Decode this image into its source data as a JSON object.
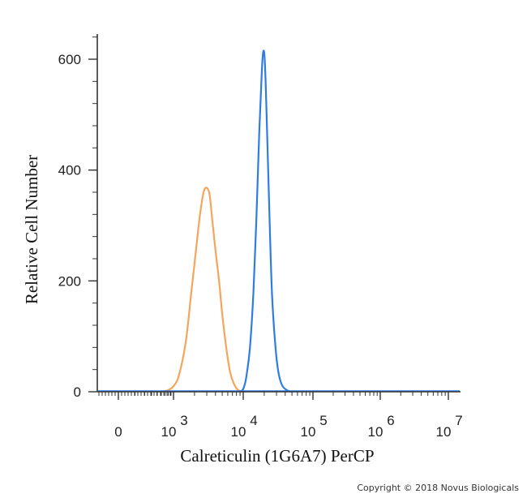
{
  "chart_data": {
    "type": "line",
    "title": "",
    "xlabel": "Calreticulin (1G6A7) PerCP",
    "ylabel": "Relative Cell Number",
    "x_scale": "biexponential",
    "x_ticks": [
      {
        "value": 0,
        "base": "0",
        "exp": ""
      },
      {
        "value": 1000,
        "base": "10",
        "exp": "3"
      },
      {
        "value": 10000,
        "base": "10",
        "exp": "4"
      },
      {
        "value": 100000,
        "base": "10",
        "exp": "5"
      },
      {
        "value": 1000000,
        "base": "10",
        "exp": "6"
      },
      {
        "value": 10000000,
        "base": "10",
        "exp": "7"
      }
    ],
    "y_ticks": [
      0,
      200,
      400,
      600
    ],
    "ylim": [
      0,
      640
    ],
    "grid": false,
    "series": [
      {
        "color": "#f5a55a",
        "x": [
          600,
          800,
          1000,
          1200,
          1500,
          1800,
          2100,
          2400,
          2700,
          3000,
          3300,
          3600,
          4000,
          4500,
          5000,
          5700,
          6500,
          7500,
          8500,
          10000
        ],
        "y": [
          0,
          3,
          10,
          30,
          90,
          180,
          255,
          320,
          360,
          368,
          355,
          310,
          255,
          200,
          140,
          80,
          35,
          12,
          3,
          0
        ]
      },
      {
        "color": "#2f7de1",
        "x": [
          9000,
          10000,
          11000,
          12500,
          14000,
          15500,
          17000,
          18500,
          19500,
          20500,
          22000,
          24000,
          26000,
          29000,
          32000,
          36000,
          42000,
          50000
        ],
        "y": [
          0,
          5,
          25,
          80,
          180,
          320,
          470,
          580,
          615,
          590,
          470,
          300,
          170,
          80,
          35,
          12,
          3,
          0
        ]
      }
    ]
  },
  "copyright": "Copyright © 2018 Novus Biologicals"
}
